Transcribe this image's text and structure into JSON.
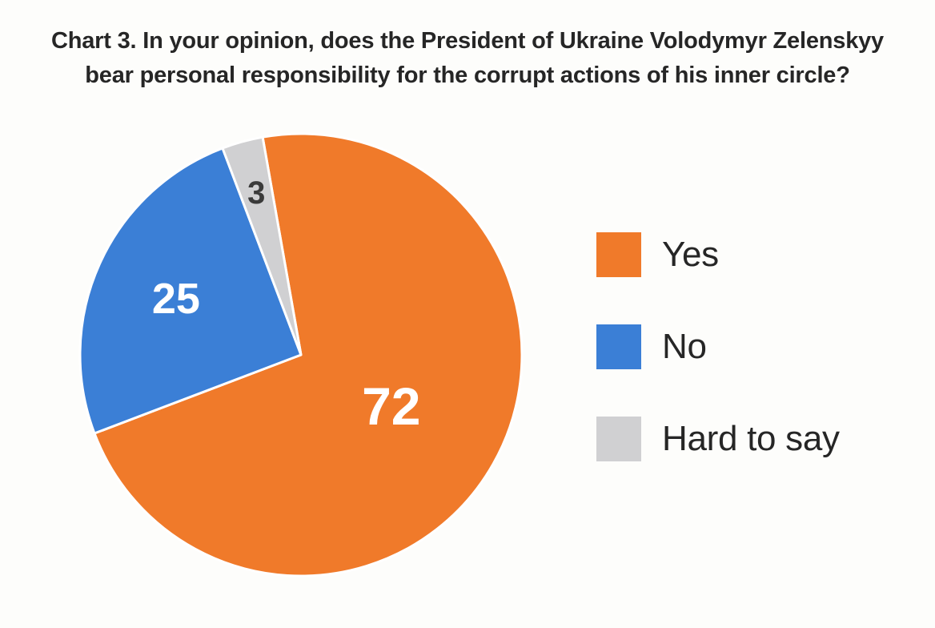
{
  "title": {
    "line1": "Chart 3. In your opinion, does the President of Ukraine Volodymyr Zelenskyy",
    "line2": "bear personal responsibility for the corrupt actions of his inner circle?"
  },
  "chart_data": {
    "type": "pie",
    "title": "Chart 3. In your opinion, does the President of Ukraine Volodymyr Zelenskyy bear personal responsibility for the corrupt actions of his inner circle?",
    "categories": [
      "Yes",
      "No",
      "Hard to say"
    ],
    "values": [
      72,
      25,
      3
    ],
    "colors": [
      "#f07a2a",
      "#3b7fd6",
      "#d0d0d2"
    ],
    "label_colors": [
      "#ffffff",
      "#ffffff",
      "#3a3a3a"
    ],
    "legend_position": "right"
  }
}
